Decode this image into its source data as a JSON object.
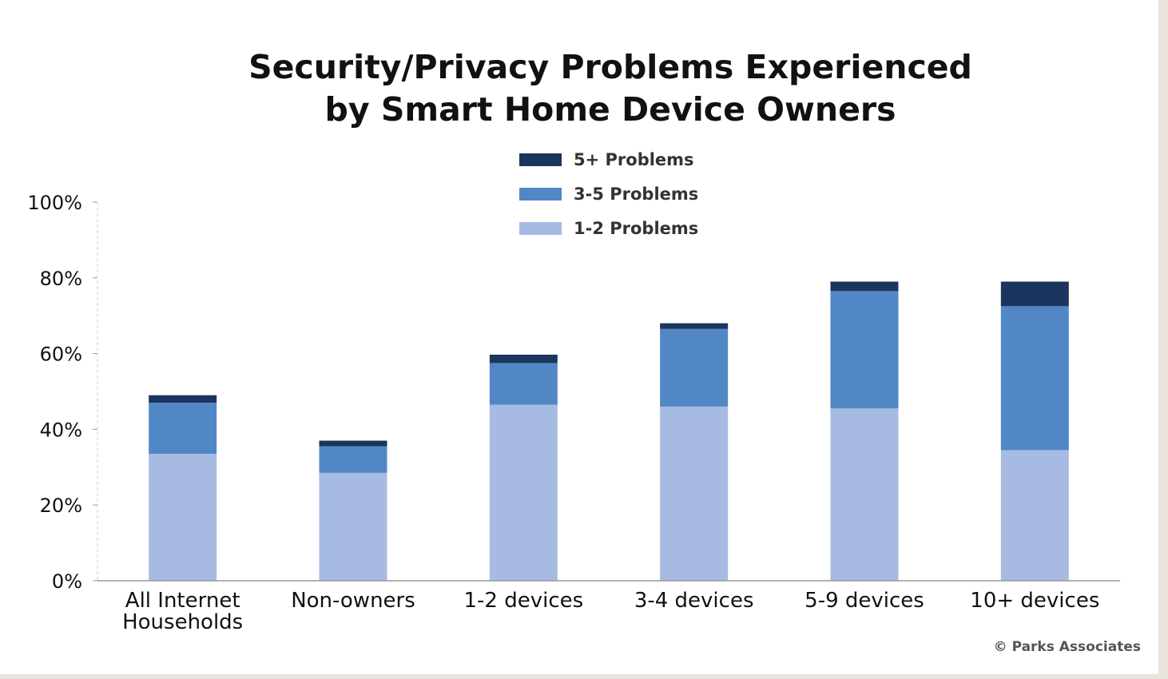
{
  "title": [
    "Security/Privacy Problems Experienced",
    "by Smart Home Device Owners"
  ],
  "credit": "© Parks Associates",
  "colors": {
    "five_plus": "#1b355f",
    "three_five": "#5287c6",
    "one_two": "#a7bbe2",
    "axis": "#999999",
    "page_edge": "#e9e4de"
  },
  "legend": [
    {
      "label": "5+ Problems",
      "series": "5+ Problems"
    },
    {
      "label": "3-5 Problems",
      "series": "3-5 Problems"
    },
    {
      "label": "1-2 Problems",
      "series": "1-2 Problems"
    }
  ],
  "chart_data": {
    "type": "bar",
    "stacked": true,
    "categories": [
      [
        "All Internet",
        "Households"
      ],
      [
        "Non-owners"
      ],
      [
        "1-2 devices"
      ],
      [
        "3-4 devices"
      ],
      [
        "5-9 devices"
      ],
      [
        "10+ devices"
      ]
    ],
    "series": [
      {
        "name": "1-2 Problems",
        "color": "#a7bbe2",
        "values": [
          33.5,
          28.5,
          46.5,
          46,
          45.5,
          34.5
        ]
      },
      {
        "name": "3-5 Problems",
        "color": "#5287c6",
        "values": [
          13.5,
          7,
          11,
          20.5,
          31,
          38
        ]
      },
      {
        "name": "5+ Problems",
        "color": "#1b355f",
        "values": [
          2,
          1.5,
          2.2,
          1.5,
          2.5,
          6.5
        ]
      }
    ],
    "yticks": [
      "0%",
      "20%",
      "40%",
      "60%",
      "80%",
      "100%"
    ],
    "ylim": [
      0,
      100
    ],
    "xlabel": "",
    "ylabel": "",
    "legend_position": "top-center",
    "grid": false
  }
}
